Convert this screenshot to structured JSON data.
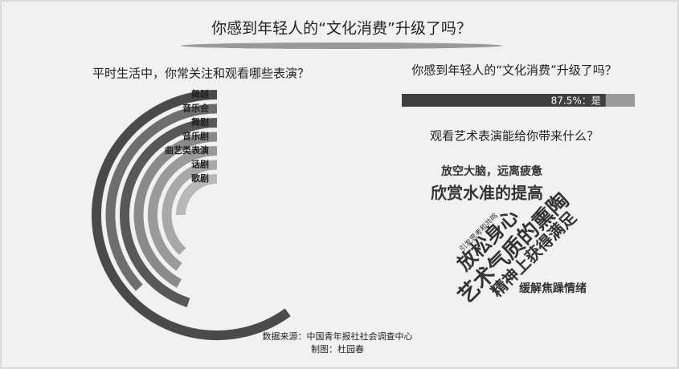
{
  "title": "你感到年轻人的“文化消费”升级了吗？",
  "chart_data": [
    {
      "type": "radial_bar",
      "title": "平时生活中，你常关注和观看哪些表演？",
      "categories": [
        "舞蹈",
        "音乐会",
        "舞剧",
        "音乐剧",
        "曲艺类表演",
        "话剧",
        "歌剧"
      ],
      "values": [
        60,
        37,
        45,
        42,
        40,
        38,
        25
      ],
      "colors": [
        "#4a4a4a",
        "#6e6e6e",
        "#585858",
        "#8a8a8a",
        "#9a9a9a",
        "#a8a8a8",
        "#b8b8b8"
      ],
      "ylim": [
        0,
        100
      ]
    },
    {
      "type": "bar",
      "title": "你感到年轻人的“文化消费”升级了吗？",
      "values": [
        87.5
      ],
      "value_labels": [
        "87.5%：是"
      ],
      "color": "#3f3f3f",
      "ylim": [
        0,
        100
      ]
    }
  ],
  "word_cloud": {
    "title": "观看艺术表演能给你带来什么？",
    "words": [
      "放空大脑，远离疲惫",
      "欣赏水准的提高",
      "引发思考和共鸣",
      "放松身心",
      "艺术气质的熏陶",
      "精神上获得满足",
      "缓解焦躁情绪"
    ]
  },
  "source": [
    "数据来源：中国青年报社社会调查中心",
    "制图：杜园春"
  ]
}
